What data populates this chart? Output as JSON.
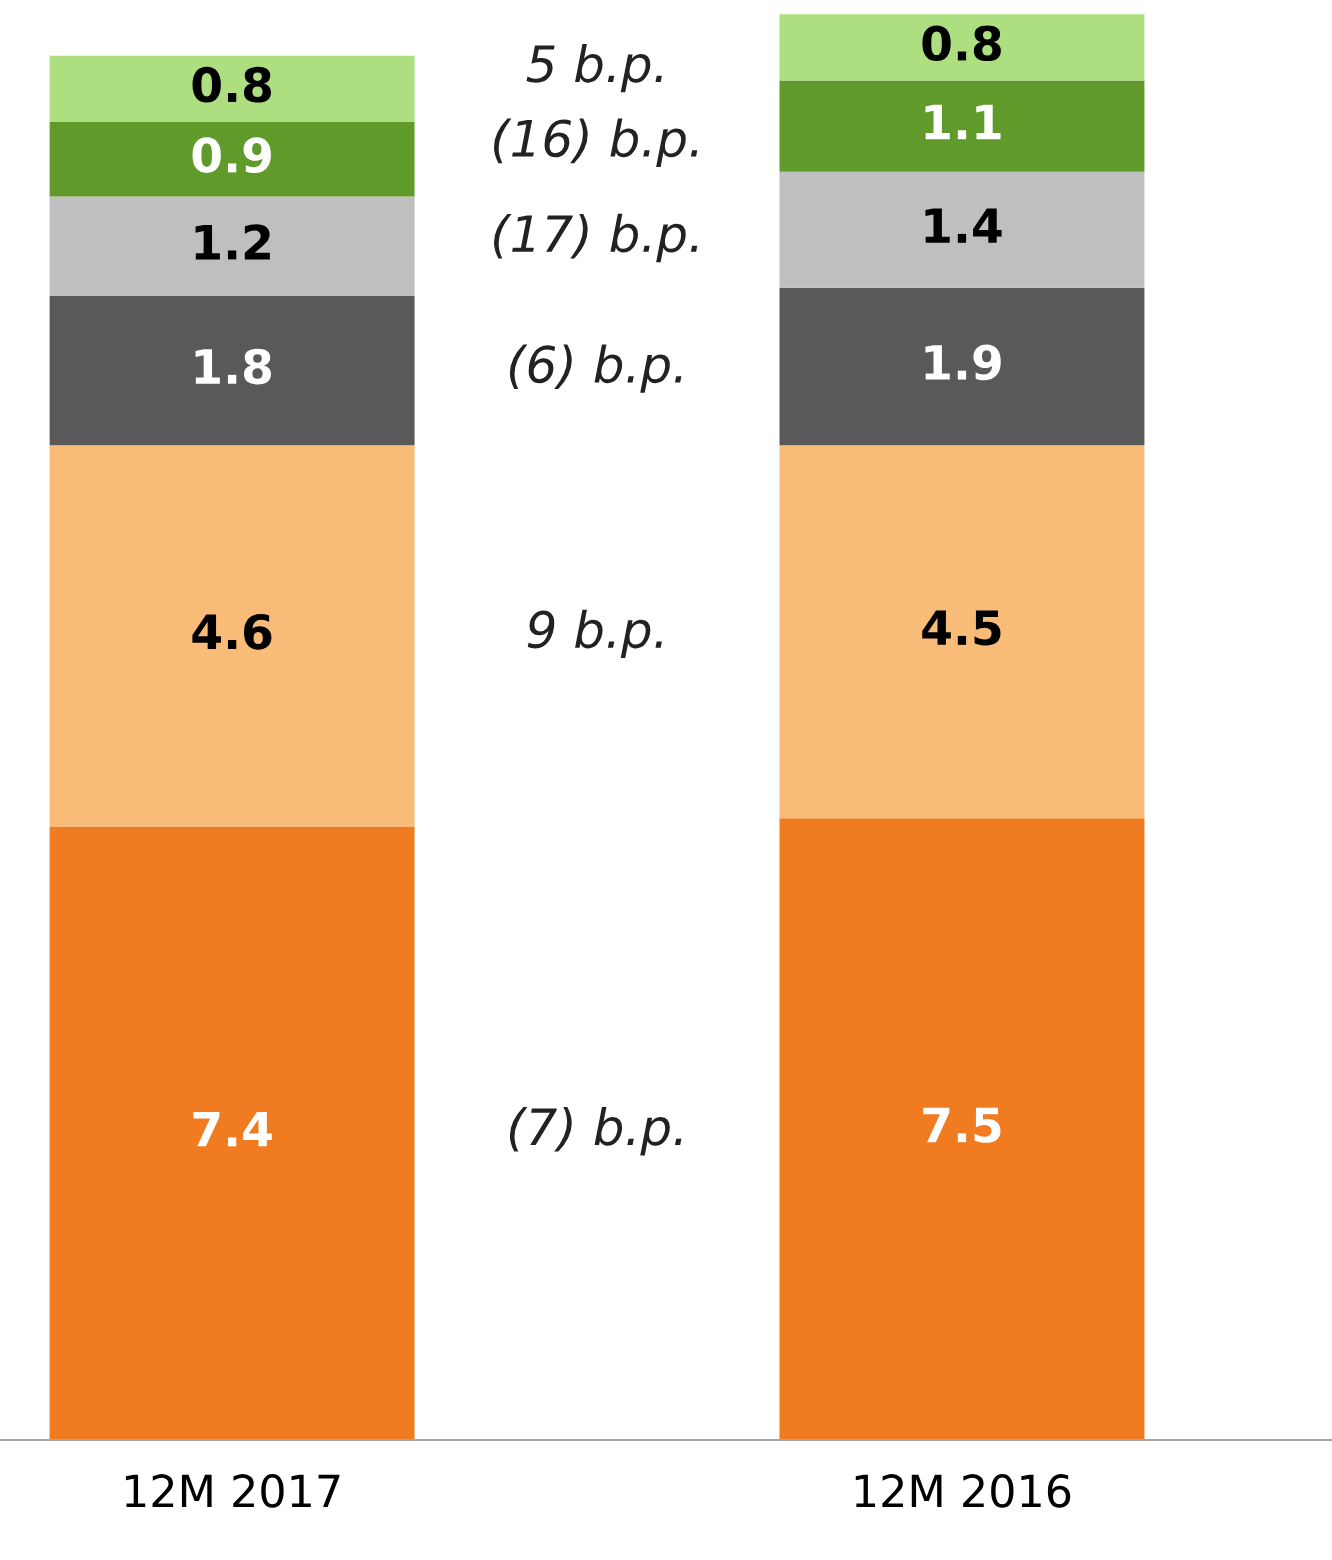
{
  "chart_data": {
    "type": "bar",
    "stacked": true,
    "data_labels": true,
    "grid": false,
    "legend": false,
    "categories": [
      "12M 2017",
      "12M 2016"
    ],
    "series": [
      {
        "color": "#f07b20",
        "values": [
          7.4,
          7.5
        ]
      },
      {
        "color": "#f8bc78",
        "values": [
          4.6,
          4.5
        ]
      },
      {
        "color": "#595959",
        "values": [
          1.8,
          1.9
        ]
      },
      {
        "color": "#bfbfbf",
        "values": [
          1.2,
          1.4
        ]
      },
      {
        "color": "#5f9a2a",
        "values": [
          0.9,
          1.1
        ]
      },
      {
        "color": "#addf80",
        "values": [
          0.8,
          0.8
        ]
      }
    ],
    "annotations": [
      "(7) b.p.",
      "9 b.p.",
      "(6) b.p.",
      "(17) b.p.",
      "(16) b.p.",
      "5 b.p."
    ]
  }
}
